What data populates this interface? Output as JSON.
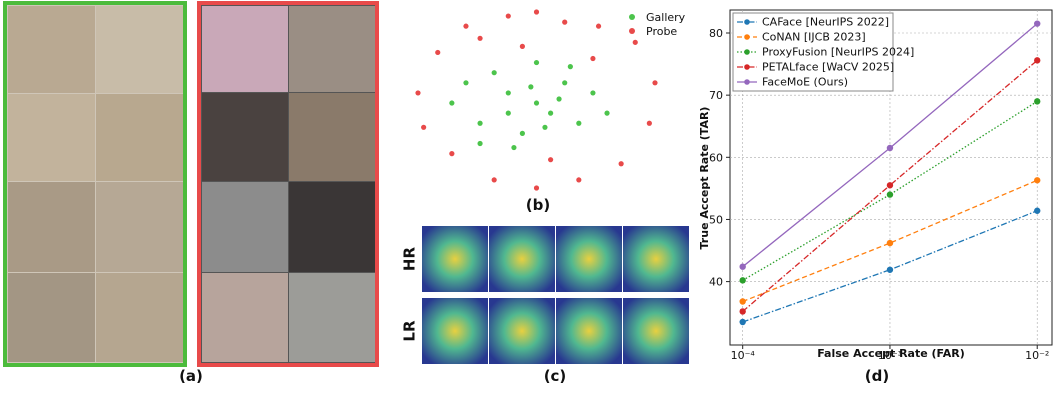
{
  "panels": {
    "a": "(a)",
    "b": "(b)",
    "c": "(c)",
    "d": "(d)",
    "hr": "HR",
    "lr": "LR"
  },
  "chart_data": [
    {
      "type": "scatter",
      "series": [
        {
          "name": "Gallery",
          "color": "#4cc44c",
          "x": [
            20,
            30,
            40,
            50,
            55,
            60,
            45,
            35,
            65,
            70,
            25,
            50,
            40,
            58,
            75,
            30,
            48,
            62,
            53,
            42
          ],
          "values": [
            50,
            40,
            55,
            50,
            45,
            60,
            35,
            65,
            40,
            55,
            60,
            70,
            45,
            52,
            45,
            30,
            58,
            68,
            38,
            28
          ]
        },
        {
          "name": "Probe",
          "color": "#e84a4a",
          "x": [
            8,
            15,
            25,
            40,
            50,
            60,
            72,
            85,
            92,
            90,
            80,
            65,
            50,
            35,
            20,
            10,
            45,
            70,
            55,
            30
          ],
          "values": [
            55,
            75,
            88,
            93,
            95,
            90,
            88,
            80,
            60,
            40,
            20,
            12,
            8,
            12,
            25,
            38,
            78,
            72,
            22,
            82
          ]
        }
      ]
    },
    {
      "type": "line",
      "x_label": "False Accept Rate (FAR)",
      "y_label": "True Accept Rate (TAR)",
      "log_x": true,
      "grid": true,
      "legend": "upper left",
      "x": [
        0.0001,
        0.001,
        0.01
      ],
      "xlim": [
        8.2e-05,
        0.0126
      ],
      "xticks": [
        {
          "value": 0.0001,
          "label": "10⁻⁴"
        },
        {
          "value": 0.001,
          "label": "10⁻³"
        },
        {
          "value": 0.01,
          "label": "10⁻²"
        }
      ],
      "ylim": [
        29.8,
        83.7
      ],
      "yticks": [
        40,
        50,
        60,
        70,
        80
      ],
      "series": [
        {
          "name": "CAFace [NeurIPS 2022]",
          "color": "#1f77b4",
          "linestyle": "dashdot",
          "values": [
            33.5,
            41.9,
            51.4
          ]
        },
        {
          "name": "CoNAN [IJCB 2023]",
          "color": "#ff7f0e",
          "linestyle": "dashed",
          "values": [
            36.8,
            46.2,
            56.3
          ]
        },
        {
          "name": "ProxyFusion [NeurIPS 2024]",
          "color": "#2ca02c",
          "linestyle": "dotted",
          "values": [
            40.2,
            54.0,
            69.0
          ]
        },
        {
          "name": "PETALface [WaCV 2025]",
          "color": "#d62728",
          "linestyle": "dashdot",
          "values": [
            35.2,
            55.5,
            75.6
          ]
        },
        {
          "name": "FaceMoE (Ours)",
          "color": "#9467bd",
          "linestyle": "solid",
          "values": [
            42.4,
            61.5,
            81.5
          ]
        }
      ]
    }
  ]
}
